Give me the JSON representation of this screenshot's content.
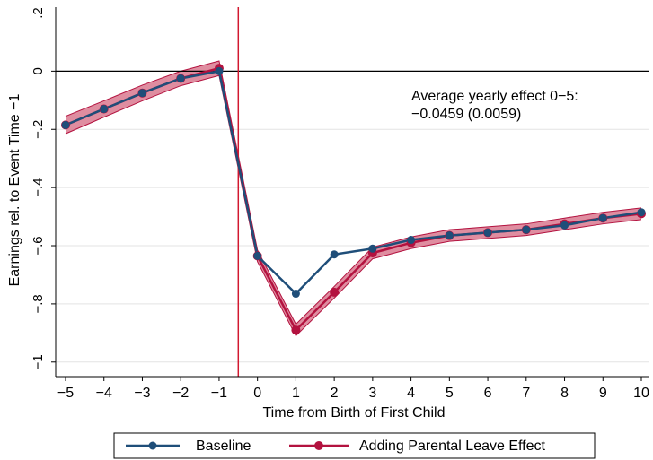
{
  "chart_data": {
    "type": "line",
    "xlabel": "Time from Birth of First Child",
    "ylabel": "Earnings rel. to Event Time −1",
    "xlim": [
      -5,
      10
    ],
    "ylim": [
      -1.05,
      0.22
    ],
    "x_ticks": [
      -5,
      -4,
      -3,
      -2,
      -1,
      0,
      1,
      2,
      3,
      4,
      5,
      6,
      7,
      8,
      9,
      10
    ],
    "x_tick_labels": [
      "−5",
      "−4",
      "−3",
      "−2",
      "−1",
      "0",
      "1",
      "2",
      "3",
      "4",
      "5",
      "6",
      "7",
      "8",
      "9",
      "10"
    ],
    "y_ticks": [
      0.2,
      0,
      -0.2,
      -0.4,
      -0.6,
      -0.8,
      -1
    ],
    "y_tick_labels": [
      ".2",
      "0",
      "−.2",
      "−.4",
      "−.6",
      "−.8",
      "−1"
    ],
    "grid": "horizontal",
    "legend_position": "bottom",
    "reference_lines": {
      "horizontal_y": 0,
      "vertical_x": -0.5
    },
    "annotation": [
      "Average yearly effect 0−5:",
      "−0.0459 (0.0059)"
    ],
    "x": [
      -5,
      -4,
      -3,
      -2,
      -1,
      0,
      1,
      2,
      3,
      4,
      5,
      6,
      7,
      8,
      9,
      10
    ],
    "series": [
      {
        "name": "Baseline",
        "color": "#1f4e79",
        "values": [
          -0.185,
          -0.13,
          -0.075,
          -0.025,
          0.0,
          -0.635,
          -0.765,
          -0.63,
          -0.61,
          -0.58,
          -0.565,
          -0.555,
          -0.545,
          -0.53,
          -0.505,
          -0.485
        ]
      },
      {
        "name": "Adding Parental Leave Effect",
        "color": "#b3123f",
        "values": [
          -0.185,
          -0.13,
          -0.075,
          -0.025,
          0.01,
          -0.635,
          -0.89,
          -0.76,
          -0.625,
          -0.59,
          -0.565,
          -0.555,
          -0.545,
          -0.525,
          -0.505,
          -0.49
        ],
        "ci_lower": [
          -0.215,
          -0.158,
          -0.102,
          -0.05,
          -0.015,
          -0.655,
          -0.91,
          -0.78,
          -0.645,
          -0.61,
          -0.585,
          -0.575,
          -0.565,
          -0.545,
          -0.525,
          -0.51
        ],
        "ci_upper": [
          -0.155,
          -0.102,
          -0.048,
          0.0,
          0.035,
          -0.615,
          -0.87,
          -0.74,
          -0.605,
          -0.57,
          -0.545,
          -0.535,
          -0.525,
          -0.505,
          -0.485,
          -0.47
        ]
      }
    ]
  }
}
